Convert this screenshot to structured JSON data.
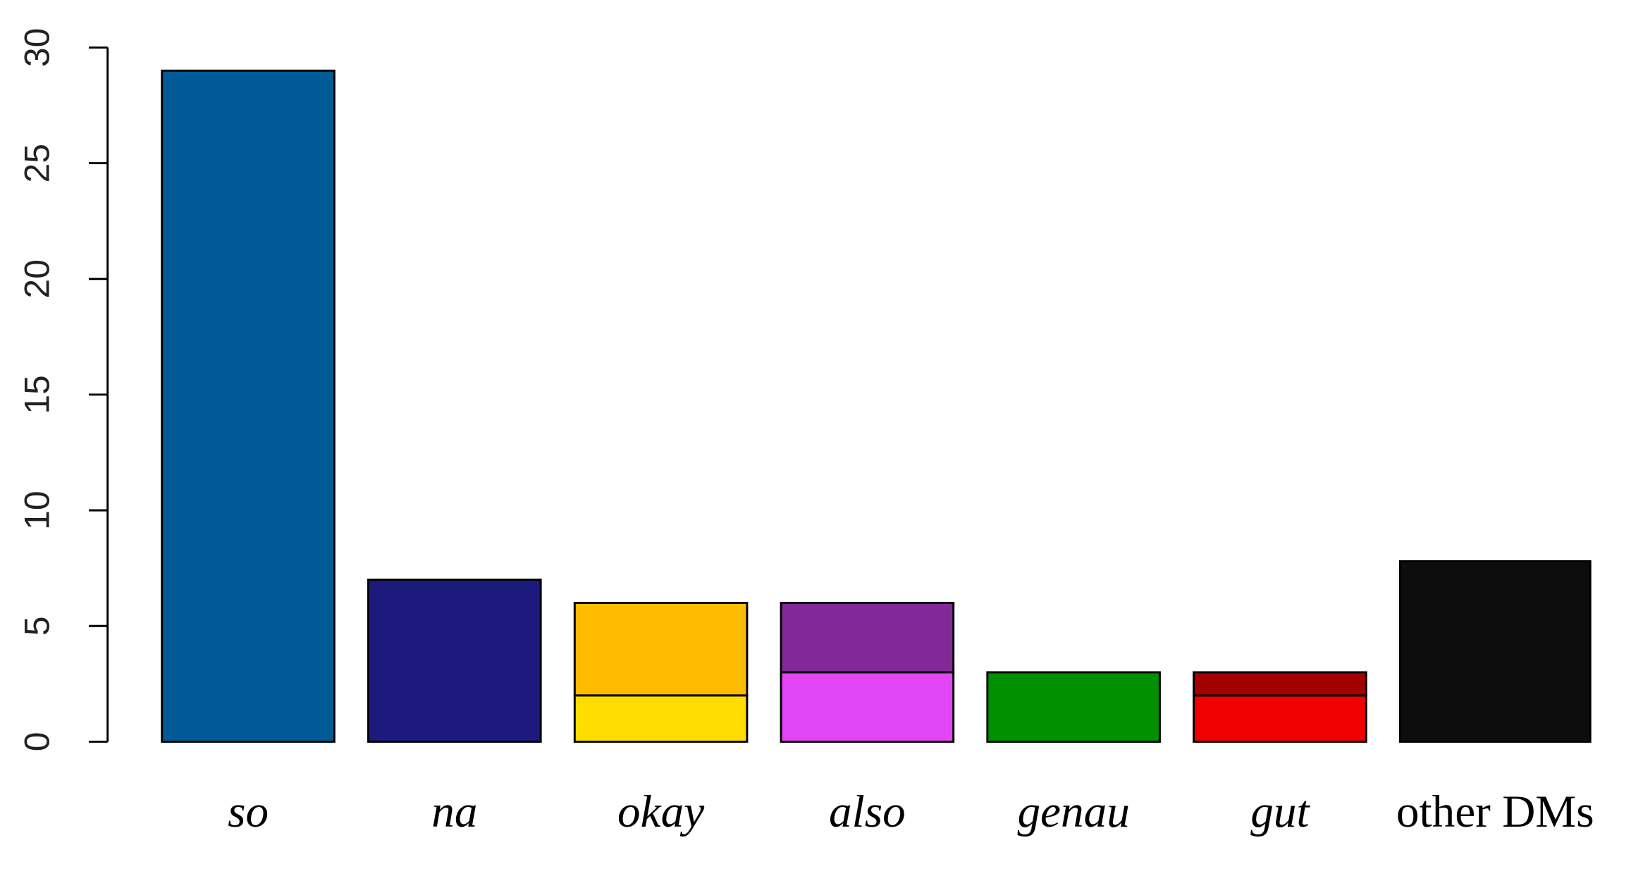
{
  "chart_data": {
    "type": "stacked_bar",
    "categories": [
      "so",
      "na",
      "okay",
      "also",
      "genau",
      "gut",
      "other DMs"
    ],
    "label_italic": [
      true,
      true,
      true,
      true,
      true,
      true,
      false
    ],
    "series": [
      {
        "values": [
          29,
          7,
          2,
          3,
          3,
          2,
          7.8
        ],
        "colors": [
          "#005a96",
          "#1c1a7c",
          "#ffdd00",
          "#e246f5",
          "#009000",
          "#f00000",
          "#0d0d0d"
        ]
      },
      {
        "values": [
          null,
          null,
          4,
          3,
          null,
          1,
          null
        ],
        "colors": [
          null,
          null,
          "#ffbb00",
          "#812996",
          null,
          "#a50000",
          null
        ]
      }
    ],
    "ylim": [
      0,
      30
    ],
    "yticks": [
      0,
      5,
      10,
      15,
      20,
      25,
      30
    ],
    "grid": false
  }
}
